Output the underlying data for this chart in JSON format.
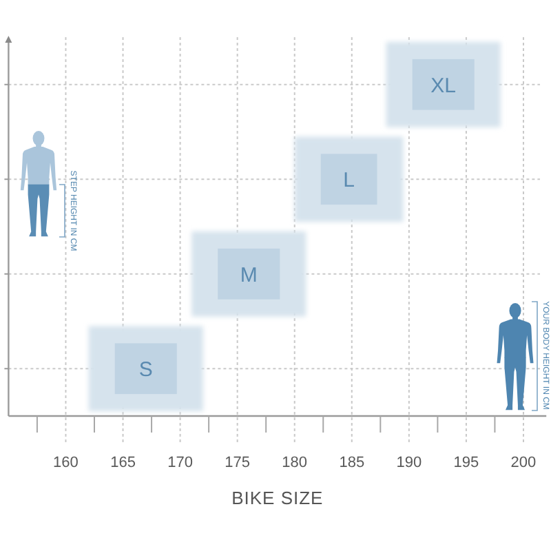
{
  "chart_data": {
    "type": "bar",
    "orientation": "horizontal",
    "categories": [
      null,
      null,
      null,
      null
    ],
    "base": [
      188,
      180,
      171,
      162
    ],
    "values": [
      10,
      9.5,
      10,
      10
    ],
    "color": "#d6e3ed",
    "xlim": [
      155,
      202
    ],
    "xticks": [
      {
        "value": 157.5,
        "label": null
      },
      160,
      {
        "value": 162.5,
        "label": null
      },
      165,
      {
        "value": 167.5,
        "label": null
      },
      170,
      {
        "value": 172.5,
        "label": null
      },
      175,
      {
        "value": 177.5,
        "label": null
      },
      180,
      {
        "value": 182.5,
        "label": null
      },
      185,
      {
        "value": 187.5,
        "label": null
      },
      190,
      {
        "value": 192.5,
        "label": null
      },
      195,
      {
        "value": 197.5,
        "label": null
      },
      200
    ],
    "xlabel": "BIKE SIZE",
    "annotations": [
      "STEP HEIGHT IN CM",
      "YOUR BODY HEIGHT IN CM",
      "XL",
      "L",
      "M",
      "S"
    ],
    "grid": true
  }
}
